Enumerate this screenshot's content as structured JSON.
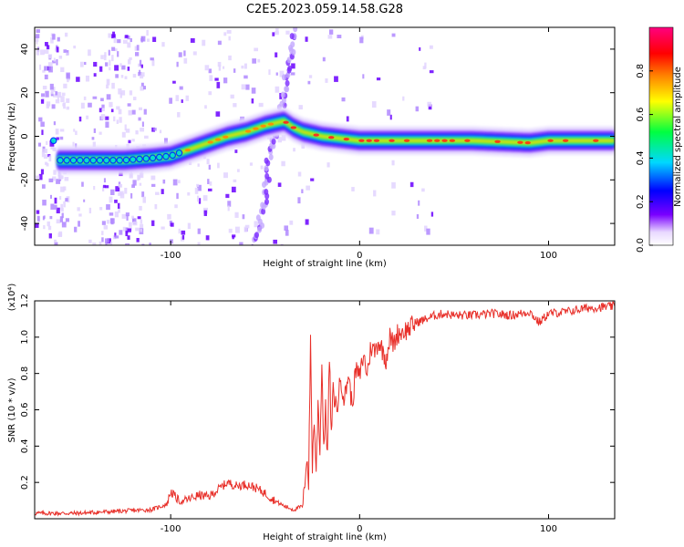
{
  "figure": {
    "title": "C2E5.2023.059.14.58.G28"
  },
  "chart_data": [
    {
      "type": "heatmap",
      "xlabel": "Height of straight line (km)",
      "ylabel": "Frequency (Hz)",
      "xlim": [
        -172,
        135
      ],
      "ylim": [
        -50,
        50
      ],
      "xticks": [
        -100,
        0,
        100
      ],
      "yticks": [
        -40,
        -20,
        0,
        20,
        40
      ],
      "colorbar": {
        "label": "Normalized spectral amplitude",
        "range": [
          0,
          1
        ],
        "ticks": [
          0.0,
          0.2,
          0.4,
          0.6,
          0.8
        ],
        "colormap": [
          "#ffffff",
          "#e8d8ff",
          "#7a00ff",
          "#0000ff",
          "#00d8ff",
          "#00ff40",
          "#ffff00",
          "#ff8000",
          "#ff0000",
          "#ff0080"
        ]
      },
      "ridge": {
        "x": [
          -160,
          -140,
          -125,
          -110,
          -100,
          -90,
          -80,
          -70,
          -60,
          -50,
          -40,
          -35,
          -30,
          -20,
          -10,
          0,
          20,
          60,
          90,
          100,
          135
        ],
        "frequency": [
          -11,
          -11,
          -11,
          -10,
          -9,
          -6,
          -3,
          0,
          2,
          5,
          7,
          4,
          2,
          0,
          -1,
          -2,
          -2,
          -2,
          -3,
          -2,
          -2
        ]
      }
    },
    {
      "type": "line",
      "xlabel": "Height of straight line (km)",
      "ylabel": "SNR (10 * v/v)",
      "yscale_label": "(x10⁴)",
      "xlim": [
        -172,
        135
      ],
      "ylim": [
        0,
        1.2
      ],
      "xticks": [
        -100,
        0,
        100
      ],
      "yticks": [
        0.2,
        0.4,
        0.6,
        0.8,
        1.0,
        1.2
      ],
      "color": "#e8302a",
      "series": [
        {
          "x": [
            -172,
            -150,
            -130,
            -110,
            -102,
            -100,
            -95,
            -90,
            -85,
            -80,
            -75,
            -70,
            -65,
            -60,
            -55,
            -50,
            -45,
            -40,
            -35,
            -30,
            -28,
            -27,
            -26,
            -25,
            -24,
            -23,
            -22,
            -21,
            -20,
            -19,
            -18,
            -17,
            -16,
            -15,
            -14,
            -12,
            -10,
            -8,
            -6,
            -4,
            -2,
            0,
            2,
            4,
            6,
            8,
            10,
            12,
            14,
            16,
            18,
            20,
            25,
            30,
            35,
            40,
            45,
            50,
            60,
            70,
            80,
            90,
            95,
            100,
            110,
            120,
            135
          ],
          "y": [
            0.03,
            0.03,
            0.04,
            0.05,
            0.08,
            0.15,
            0.09,
            0.11,
            0.13,
            0.12,
            0.16,
            0.2,
            0.18,
            0.19,
            0.17,
            0.14,
            0.1,
            0.07,
            0.05,
            0.07,
            0.35,
            0.2,
            0.98,
            0.3,
            0.55,
            0.25,
            0.65,
            0.38,
            0.85,
            0.4,
            0.6,
            0.35,
            0.9,
            0.45,
            0.7,
            0.6,
            0.78,
            0.65,
            0.8,
            0.62,
            0.82,
            0.78,
            0.9,
            0.8,
            0.95,
            0.92,
            0.98,
            0.93,
            0.88,
            1.0,
            0.96,
            1.02,
            1.04,
            1.08,
            1.1,
            1.12,
            1.13,
            1.12,
            1.12,
            1.13,
            1.12,
            1.14,
            1.08,
            1.13,
            1.14,
            1.16,
            1.17
          ]
        }
      ]
    }
  ]
}
